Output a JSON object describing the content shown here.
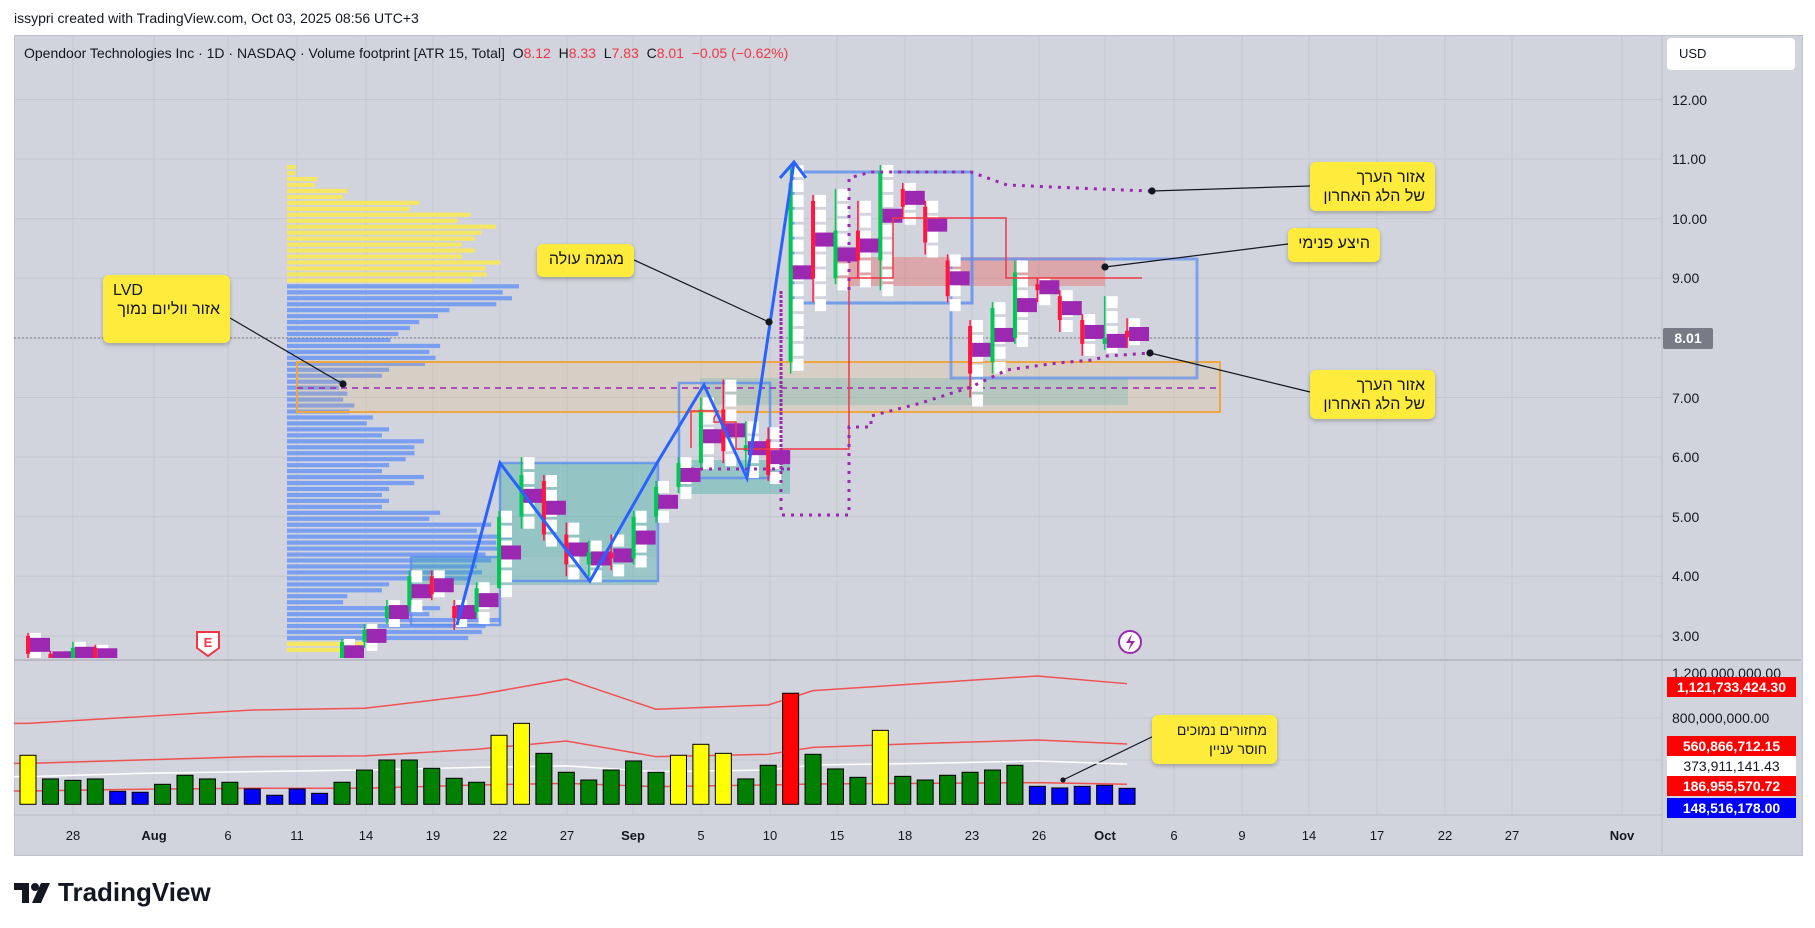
{
  "header": {
    "attribution": "issypri created with TradingView.com, Oct 03, 2025 08:56 UTC+3"
  },
  "legend": {
    "title": "Opendoor Technologies Inc · 1D · NASDAQ · Volume footprint [ATR 15, Total]",
    "o_label": "O",
    "o": "8.12",
    "h_label": "H",
    "h": "8.33",
    "l_label": "L",
    "l": "7.83",
    "c_label": "C",
    "c": "8.01",
    "change": "−0.05 (−0.62%)"
  },
  "currency": "USD",
  "price_axis": {
    "ticks": [
      "12.00",
      "11.00",
      "10.00",
      "9.00",
      "7.00",
      "6.00",
      "5.00",
      "4.00",
      "3.00"
    ],
    "current_price": "8.01"
  },
  "volume_axis": {
    "ticks": [
      "1,200,000,000.00",
      "800,000,000.00"
    ],
    "labels": [
      {
        "text": "1,121,733,424.30",
        "color": "red"
      },
      {
        "text": "560,866,712.15",
        "color": "red"
      },
      {
        "text": "373,911,141.43",
        "color": "white"
      },
      {
        "text": "186,955,570.72",
        "color": "red"
      },
      {
        "text": "148,516,178.00",
        "color": "blue"
      }
    ]
  },
  "date_axis": [
    "28",
    "Aug",
    "6",
    "11",
    "14",
    "19",
    "22",
    "27",
    "Sep",
    "5",
    "10",
    "15",
    "18",
    "23",
    "26",
    "Oct",
    "6",
    "9",
    "14",
    "17",
    "22",
    "27",
    "Nov"
  ],
  "annotations": {
    "lvd_title": "LVD",
    "lvd_text": "אזור ווליום נמוך",
    "uptrend": "מגמה עולה",
    "value_area_top_1": "אזור הערך",
    "value_area_top_2": "של הלג האחרון",
    "internal_supply": "היצע פנימי",
    "value_area_bottom_1": "אזור הערך",
    "value_area_bottom_2": "של הלג האחרון",
    "volume_note_1": "מחזורים נמוכים",
    "volume_note_2": "חוסר עניין"
  },
  "icons": {
    "earnings": "E",
    "logo": "TradingView"
  },
  "colors": {
    "up": "#00c853",
    "down": "#ff1744",
    "footprint_poc": "#9c27b0",
    "vol_yellow": "#ffff00",
    "vol_green": "#008000",
    "vol_blue": "#0000ff",
    "vol_red": "#ff0000",
    "profile_va": "#7b9ff0",
    "profile_out": "#f5e663",
    "background": "#d1d4dc"
  },
  "chart_data": {
    "type": "candlestick",
    "price_range": [
      2.6,
      12.5
    ],
    "ohlc": [
      [
        3.0,
        3.05,
        2.6,
        2.7
      ],
      [
        2.7,
        2.75,
        2.5,
        2.55
      ],
      [
        2.6,
        2.9,
        2.5,
        2.8
      ],
      [
        2.8,
        2.85,
        2.5,
        2.55
      ],
      [
        2.5,
        2.6,
        2.4,
        2.45
      ],
      [
        2.45,
        2.5,
        2.3,
        2.35
      ],
      [
        2.35,
        2.45,
        2.2,
        2.3
      ],
      [
        2.3,
        2.55,
        2.25,
        2.5
      ],
      [
        2.5,
        2.55,
        2.35,
        2.4
      ],
      [
        2.4,
        2.5,
        2.3,
        2.35
      ],
      [
        2.35,
        2.4,
        2.25,
        2.3
      ],
      [
        2.3,
        2.4,
        2.25,
        2.35
      ],
      [
        2.35,
        2.5,
        2.3,
        2.45
      ],
      [
        2.45,
        2.6,
        2.4,
        2.55
      ],
      [
        2.55,
        2.95,
        2.5,
        2.9
      ],
      [
        2.9,
        3.2,
        2.8,
        3.1
      ],
      [
        3.3,
        3.6,
        3.2,
        3.5
      ],
      [
        3.5,
        4.1,
        3.4,
        4.0
      ],
      [
        4.0,
        4.1,
        3.6,
        3.7
      ],
      [
        3.5,
        3.6,
        3.1,
        3.3
      ],
      [
        3.4,
        3.9,
        3.3,
        3.8
      ],
      [
        3.8,
        5.1,
        3.8,
        5.0
      ],
      [
        5.0,
        6.0,
        4.8,
        5.7
      ],
      [
        5.6,
        5.7,
        4.6,
        4.7
      ],
      [
        4.7,
        4.9,
        4.0,
        4.2
      ],
      [
        4.2,
        4.6,
        4.0,
        4.4
      ],
      [
        4.4,
        4.7,
        4.1,
        4.3
      ],
      [
        4.3,
        5.1,
        4.2,
        5.0
      ],
      [
        5.0,
        5.6,
        4.9,
        5.5
      ],
      [
        5.5,
        6.0,
        5.4,
        5.9
      ],
      [
        5.9,
        7.0,
        5.8,
        6.8
      ],
      [
        6.8,
        7.3,
        5.9,
        6.1
      ],
      [
        6.1,
        6.6,
        5.8,
        6.2
      ],
      [
        6.3,
        6.5,
        5.6,
        5.7
      ],
      [
        7.6,
        10.9,
        7.4,
        10.6
      ],
      [
        10.3,
        10.4,
        8.6,
        9.0
      ],
      [
        9.0,
        10.5,
        8.9,
        9.8
      ],
      [
        9.8,
        10.3,
        9.0,
        9.3
      ],
      [
        9.3,
        10.9,
        8.8,
        10.8
      ],
      [
        10.5,
        10.6,
        10.0,
        10.2
      ],
      [
        10.2,
        10.3,
        9.4,
        9.6
      ],
      [
        9.3,
        9.4,
        8.6,
        8.7
      ],
      [
        8.2,
        8.3,
        7.0,
        7.4
      ],
      [
        7.6,
        8.6,
        7.4,
        8.5
      ],
      [
        8.0,
        9.3,
        7.9,
        9.1
      ],
      [
        8.9,
        9.0,
        8.6,
        8.8
      ],
      [
        8.7,
        8.8,
        8.1,
        8.3
      ],
      [
        8.3,
        8.4,
        7.7,
        7.9
      ],
      [
        7.9,
        8.7,
        7.8,
        8.0
      ],
      [
        8.12,
        8.33,
        7.83,
        8.01
      ]
    ],
    "volume_millions": [
      456,
      236,
      223,
      236,
      121,
      112,
      186,
      270,
      236,
      205,
      143,
      84,
      143,
      102,
      205,
      319,
      412,
      412,
      335,
      242,
      205,
      642,
      753,
      474,
      298,
      226,
      319,
      403,
      298,
      456,
      558,
      474,
      236,
      363,
      1033,
      465,
      329,
      251,
      688,
      260,
      226,
      270,
      298,
      319,
      363,
      167,
      152,
      167,
      177,
      148.5
    ],
    "volume_colors": [
      "yellow",
      "green",
      "green",
      "green",
      "blue",
      "blue",
      "green",
      "green",
      "green",
      "green",
      "blue",
      "blue",
      "blue",
      "blue",
      "green",
      "green",
      "green",
      "green",
      "green",
      "green",
      "green",
      "yellow",
      "yellow",
      "green",
      "green",
      "green",
      "green",
      "green",
      "green",
      "yellow",
      "yellow",
      "yellow",
      "green",
      "green",
      "red",
      "green",
      "green",
      "green",
      "yellow",
      "green",
      "green",
      "green",
      "green",
      "green",
      "green",
      "blue",
      "blue",
      "blue",
      "blue",
      "blue"
    ],
    "volume_bands": {
      "bar_index": [
        0,
        5,
        10,
        15,
        20,
        24,
        28,
        33,
        35,
        40,
        45,
        49
      ],
      "upper": [
        753,
        815,
        877,
        893,
        1017,
        1166,
        884,
        924,
        1057,
        1126,
        1194,
        1122
      ],
      "middle": [
        381,
        412,
        443,
        450,
        512,
        589,
        443,
        465,
        530,
        567,
        598,
        561
      ],
      "average": [
        257,
        288,
        304,
        319,
        344,
        357,
        304,
        319,
        366,
        381,
        403,
        374
      ],
      "lower": [
        124,
        140,
        149,
        149,
        180,
        195,
        164,
        180,
        189,
        195,
        202,
        187
      ]
    },
    "volume_profile": {
      "prices": [
        10.8,
        10.6,
        10.4,
        10.2,
        10.0,
        9.8,
        9.6,
        9.4,
        9.2,
        9.0,
        8.8,
        8.6,
        8.4,
        8.2,
        8.0,
        7.8,
        7.6,
        7.4,
        7.2,
        7.0,
        6.8,
        6.6,
        6.4,
        6.2,
        6.0,
        5.8,
        5.6,
        5.4,
        5.2,
        5.0,
        4.8,
        4.6,
        4.4,
        4.2,
        4.0,
        3.8,
        3.6,
        3.4,
        3.2,
        3.0,
        2.8
      ],
      "relative": [
        0.04,
        0.13,
        0.26,
        0.57,
        0.79,
        0.9,
        0.81,
        0.81,
        0.92,
        0.86,
        1.0,
        0.97,
        0.7,
        0.57,
        0.48,
        0.66,
        0.64,
        0.44,
        0.24,
        0.26,
        0.29,
        0.37,
        0.44,
        0.59,
        0.55,
        0.44,
        0.59,
        0.44,
        0.44,
        0.66,
        0.88,
        0.97,
        0.92,
        0.88,
        0.84,
        0.44,
        0.26,
        0.66,
        0.92,
        0.84,
        0.33
      ],
      "value_area": [
        3.0,
        8.8
      ]
    }
  }
}
